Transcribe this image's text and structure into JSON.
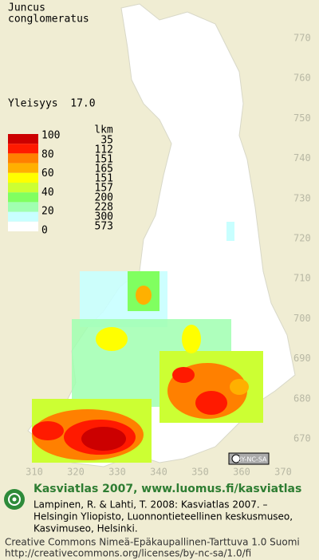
{
  "header": {
    "species_line1": "Juncus",
    "species_line2": "conglomeratus",
    "index_text": "Yleisyys  17.0"
  },
  "legend": {
    "class_labels": [
      "100",
      "80",
      "60",
      "40",
      "20",
      "0"
    ],
    "count_header": "lkm",
    "counts": [
      "35",
      "112",
      "151",
      "165",
      "151",
      "157",
      "200",
      "228",
      "300",
      "573"
    ]
  },
  "map": {
    "northing_labels": [
      "770",
      "760",
      "750",
      "740",
      "730",
      "720",
      "710",
      "700",
      "690",
      "680",
      "670"
    ],
    "easting_labels": [
      "310",
      "320",
      "330",
      "340",
      "350",
      "360",
      "370"
    ],
    "license_badge": "BY-NC-SA"
  },
  "footer": {
    "site": "Kasviatlas 2007, www.luomus.fi/kasviatlas",
    "citation": [
      "Lampinen, R. & Lahti, T. 2008: Kasviatlas 2007. –",
      "Helsingin Yliopisto, Luonnontieteellinen keskusmuseo,",
      "Kasvimuseo, Helsinki."
    ],
    "license": "Creative Commons Nimeä-Epäkaupallinen-Tarttuva 1.0 Suomi",
    "url": "http://creativecommons.org/licenses/by-nc-sa/1.0/fi"
  }
}
